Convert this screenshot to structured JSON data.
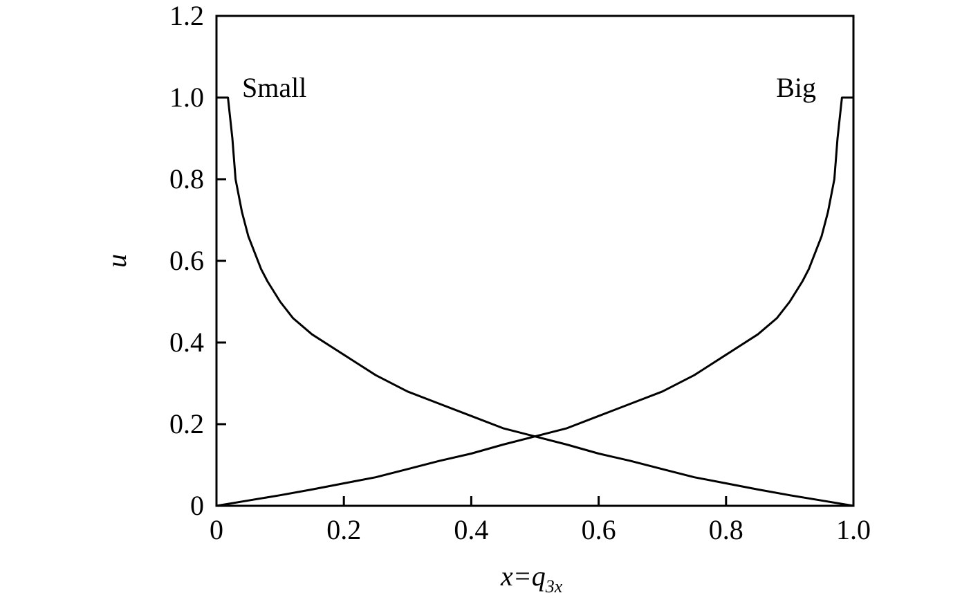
{
  "chart_data": {
    "type": "line",
    "title": "",
    "xlabel": {
      "base": "x=q",
      "sub": "3x"
    },
    "ylabel": "u",
    "xlim": [
      0,
      1.0
    ],
    "ylim": [
      0,
      1.2
    ],
    "x_ticks": [
      0,
      0.2,
      0.4,
      0.6,
      0.8,
      1.0
    ],
    "x_tick_labels": [
      "0",
      "0.2",
      "0.4",
      "0.6",
      "0.8",
      "1.0"
    ],
    "y_ticks": [
      0,
      0.2,
      0.4,
      0.6,
      0.8,
      1.0,
      1.2
    ],
    "y_tick_labels": [
      "0",
      "0.2",
      "0.4",
      "0.6",
      "0.8",
      "1.0",
      "1.2"
    ],
    "grid": false,
    "legend": "none",
    "series": [
      {
        "name": "Small",
        "x": [
          0,
          0.018,
          0.025,
          0.03,
          0.04,
          0.05,
          0.06,
          0.07,
          0.08,
          0.1,
          0.12,
          0.15,
          0.2,
          0.25,
          0.3,
          0.35,
          0.4,
          0.45,
          0.5,
          0.55,
          0.6,
          0.65,
          0.7,
          0.75,
          0.8,
          0.85,
          0.9,
          0.95,
          1.0
        ],
        "y": [
          1.0,
          1.0,
          0.9,
          0.8,
          0.72,
          0.66,
          0.62,
          0.58,
          0.55,
          0.5,
          0.46,
          0.42,
          0.37,
          0.32,
          0.28,
          0.25,
          0.22,
          0.19,
          0.17,
          0.15,
          0.128,
          0.11,
          0.09,
          0.07,
          0.055,
          0.04,
          0.026,
          0.013,
          0.0
        ]
      },
      {
        "name": "Big",
        "x": [
          0,
          0.05,
          0.1,
          0.15,
          0.2,
          0.25,
          0.3,
          0.35,
          0.4,
          0.45,
          0.5,
          0.55,
          0.6,
          0.65,
          0.7,
          0.75,
          0.8,
          0.85,
          0.88,
          0.9,
          0.92,
          0.93,
          0.94,
          0.95,
          0.96,
          0.97,
          0.975,
          0.982,
          1.0
        ],
        "y": [
          0.0,
          0.013,
          0.026,
          0.04,
          0.055,
          0.07,
          0.09,
          0.11,
          0.128,
          0.15,
          0.17,
          0.19,
          0.22,
          0.25,
          0.28,
          0.32,
          0.37,
          0.42,
          0.46,
          0.5,
          0.55,
          0.58,
          0.62,
          0.66,
          0.72,
          0.8,
          0.9,
          1.0,
          1.0
        ]
      }
    ],
    "annotations": [
      {
        "text": "Small",
        "series": "Small"
      },
      {
        "text": "Big",
        "series": "Big"
      }
    ]
  }
}
